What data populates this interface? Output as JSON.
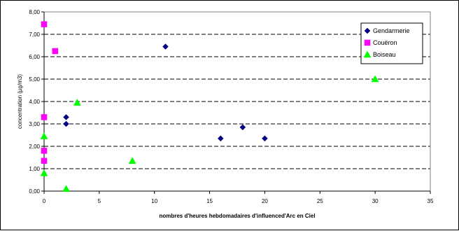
{
  "chart_data": {
    "type": "scatter",
    "title": "",
    "xlabel": "nombres d'heures hebdomadaires d'influenced'Arc en Ciel",
    "ylabel": "concentration  (µg/m3)",
    "xlim": [
      0,
      35
    ],
    "ylim": [
      0,
      8
    ],
    "x_ticks": [
      "0",
      "5",
      "10",
      "15",
      "20",
      "25",
      "30",
      "35"
    ],
    "y_ticks": [
      "0,00",
      "1,00",
      "2,00",
      "3,00",
      "4,00",
      "5,00",
      "6,00",
      "7,00",
      "8,00"
    ],
    "grid": "horizontal dashed",
    "legend_position": "top-right",
    "series": [
      {
        "name": "Gendarmerie",
        "marker": "diamond",
        "color": "#000080",
        "points": [
          [
            2,
            3.3
          ],
          [
            2,
            3.0
          ],
          [
            11,
            6.45
          ],
          [
            16,
            2.35
          ],
          [
            18,
            2.85
          ],
          [
            20,
            2.35
          ]
        ]
      },
      {
        "name": "Couëron",
        "marker": "square",
        "color": "#ff00ff",
        "points": [
          [
            0,
            7.45
          ],
          [
            1,
            6.25
          ],
          [
            0,
            3.3
          ],
          [
            0,
            1.8
          ],
          [
            0,
            1.35
          ]
        ]
      },
      {
        "name": "Boiseau",
        "marker": "triangle",
        "color": "#00ff00",
        "points": [
          [
            0,
            2.45
          ],
          [
            0,
            0.8
          ],
          [
            2,
            0.1
          ],
          [
            3,
            3.95
          ],
          [
            8,
            1.35
          ],
          [
            30,
            5.0
          ]
        ]
      }
    ]
  }
}
